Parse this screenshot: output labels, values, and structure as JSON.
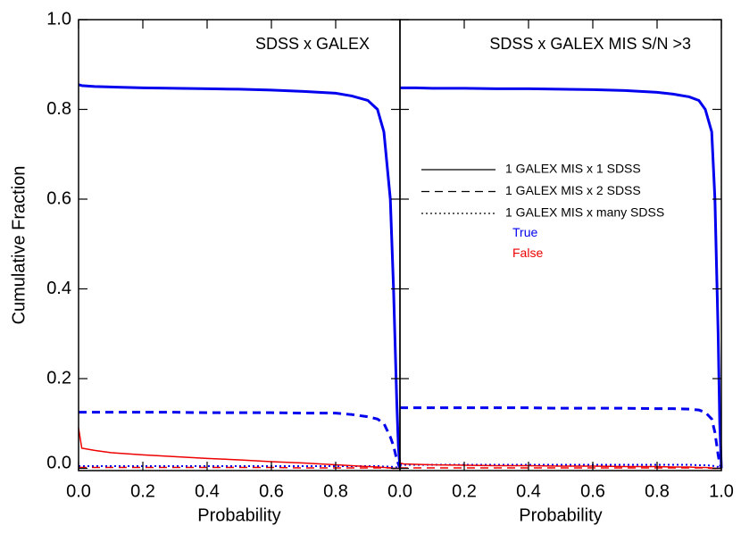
{
  "chart_data": [
    {
      "type": "line",
      "title": "SDSS x GALEX",
      "xlabel": "Probability",
      "ylabel": "Cumulative Fraction",
      "xlim": [
        0,
        1
      ],
      "ylim": [
        -0.005,
        1
      ],
      "xticks": [
        {
          "value": 0,
          "label": "0.0"
        },
        0.2,
        0.4,
        0.6,
        0.8
      ],
      "yticks": [
        {
          "value": 0,
          "label": "0.0"
        },
        0.2,
        0.4,
        0.6,
        0.8,
        {
          "value": 1,
          "label": "1.0"
        }
      ],
      "x": [
        0,
        0.01,
        0.05,
        0.1,
        0.2,
        0.3,
        0.4,
        0.5,
        0.6,
        0.7,
        0.8,
        0.85,
        0.9,
        0.93,
        0.95,
        0.97,
        0.98,
        0.99,
        0.995,
        1
      ],
      "series": [
        {
          "color": "#0000ee",
          "dash": "solid",
          "width": 3,
          "values": [
            0.855,
            0.853,
            0.851,
            0.85,
            0.848,
            0.847,
            0.846,
            0.845,
            0.843,
            0.84,
            0.836,
            0.83,
            0.82,
            0.8,
            0.75,
            0.6,
            0.4,
            0.15,
            0.05,
            0
          ]
        },
        {
          "color": "#0000ee",
          "dash": "dashed",
          "width": 3,
          "values": [
            0.125,
            0.125,
            0.125,
            0.125,
            0.125,
            0.125,
            0.124,
            0.124,
            0.124,
            0.123,
            0.123,
            0.12,
            0.115,
            0.11,
            0.1,
            0.07,
            0.05,
            0.02,
            0.01,
            0
          ]
        },
        {
          "color": "#0000ee",
          "dash": "dotted",
          "width": 2,
          "values": [
            0.005,
            0.005,
            0.005,
            0.005,
            0.005,
            0.005,
            0.005,
            0.005,
            0.005,
            0.005,
            0.005,
            0.005,
            0.005,
            0.005,
            0.004,
            0.004,
            0.003,
            0.002,
            0.001,
            0
          ]
        },
        {
          "color": "#ee0000",
          "dash": "solid",
          "width": 1.5,
          "values": [
            0.09,
            0.045,
            0.04,
            0.035,
            0.03,
            0.026,
            0.022,
            0.019,
            0.015,
            0.012,
            0.008,
            0.006,
            0.004,
            0.003,
            0.002,
            0.001,
            0,
            0,
            0,
            0
          ]
        },
        {
          "color": "#ee0000",
          "dash": "dashed",
          "width": 1.5,
          "values": [
            0.002,
            0.002,
            0.002,
            0.002,
            0.002,
            0.002,
            0.002,
            0.002,
            0.002,
            0.001,
            0.001,
            0.001,
            0.001,
            0.001,
            0.001,
            0.001,
            0,
            0,
            0,
            0
          ]
        }
      ]
    },
    {
      "type": "line",
      "title": "SDSS x GALEX MIS S/N >3",
      "xlabel": "Probability",
      "xlim": [
        0,
        1
      ],
      "ylim": [
        -0.005,
        1
      ],
      "xticks": [
        {
          "value": 0,
          "label": "0.0"
        },
        0.2,
        0.4,
        0.6,
        0.8,
        {
          "value": 1,
          "label": "1.0"
        }
      ],
      "x": [
        0,
        0.01,
        0.05,
        0.1,
        0.2,
        0.3,
        0.4,
        0.5,
        0.6,
        0.7,
        0.8,
        0.85,
        0.9,
        0.93,
        0.95,
        0.97,
        0.98,
        0.99,
        0.995,
        1
      ],
      "series": [
        {
          "color": "#0000ee",
          "dash": "solid",
          "width": 3,
          "values": [
            0.848,
            0.848,
            0.848,
            0.847,
            0.847,
            0.846,
            0.846,
            0.845,
            0.844,
            0.842,
            0.838,
            0.834,
            0.828,
            0.82,
            0.8,
            0.75,
            0.6,
            0.3,
            0.1,
            0
          ]
        },
        {
          "color": "#0000ee",
          "dash": "dashed",
          "width": 3,
          "values": [
            0.135,
            0.135,
            0.135,
            0.135,
            0.135,
            0.135,
            0.135,
            0.134,
            0.134,
            0.134,
            0.133,
            0.133,
            0.132,
            0.13,
            0.125,
            0.11,
            0.08,
            0.03,
            0.01,
            0
          ]
        },
        {
          "color": "#0000ee",
          "dash": "dotted",
          "width": 2,
          "values": [
            0.008,
            0.008,
            0.008,
            0.008,
            0.008,
            0.008,
            0.008,
            0.008,
            0.008,
            0.008,
            0.008,
            0.008,
            0.008,
            0.007,
            0.007,
            0.006,
            0.005,
            0.003,
            0.002,
            0
          ]
        },
        {
          "color": "#ee0000",
          "dash": "solid",
          "width": 1.5,
          "values": [
            0.012,
            0.01,
            0.009,
            0.008,
            0.007,
            0.006,
            0.006,
            0.005,
            0.005,
            0.004,
            0.004,
            0.003,
            0.003,
            0.002,
            0.002,
            0.001,
            0,
            0,
            0,
            0
          ]
        },
        {
          "color": "#ee0000",
          "dash": "dashed",
          "width": 1.5,
          "values": [
            0.001,
            0.001,
            0.001,
            0.001,
            0.001,
            0.001,
            0.001,
            0.001,
            0.001,
            0.001,
            0.001,
            0.001,
            0.001,
            0.001,
            0.001,
            0,
            0,
            0,
            0,
            0
          ]
        }
      ],
      "legend": {
        "line_styles": [
          {
            "label": "1 GALEX MIS x 1 SDSS",
            "dash": "solid"
          },
          {
            "label": "1 GALEX MIS x 2 SDSS",
            "dash": "dashed"
          },
          {
            "label": "1 GALEX MIS x many SDSS",
            "dash": "dotted"
          }
        ],
        "classes": [
          {
            "label": "True",
            "color": "#0000ee"
          },
          {
            "label": "False",
            "color": "#ee0000"
          }
        ]
      }
    }
  ]
}
